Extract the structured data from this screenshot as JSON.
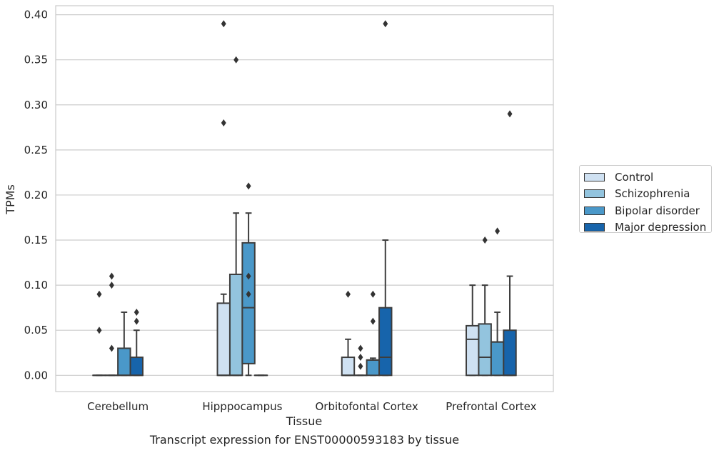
{
  "chart_data": {
    "type": "box",
    "xlabel": "Tissue",
    "ylabel": "TPMs",
    "ylim": [
      -0.018,
      0.41
    ],
    "yticks": [
      0.0,
      0.05,
      0.1,
      0.15,
      0.2,
      0.25,
      0.3,
      0.35,
      0.4
    ],
    "ytick_labels": [
      "0.00",
      "0.05",
      "0.10",
      "0.15",
      "0.20",
      "0.25",
      "0.30",
      "0.35",
      "0.40"
    ],
    "grid": true,
    "legend_position": "right",
    "categories": [
      "Cerebellum",
      "Hipppocampus",
      "Orbitofontal Cortex",
      "Prefrontal Cortex"
    ],
    "series": [
      {
        "name": "Control",
        "color": "#cfe1f2",
        "boxes": [
          {
            "q1": 0,
            "median": 0,
            "q3": 0,
            "whislo": 0,
            "whishi": 0,
            "fliers": [
              0.09,
              0.05
            ]
          },
          {
            "q1": 0,
            "median": 0,
            "q3": 0.08,
            "whislo": 0,
            "whishi": 0.09,
            "fliers": [
              0.39,
              0.28
            ]
          },
          {
            "q1": 0,
            "median": 0,
            "q3": 0.02,
            "whislo": 0,
            "whishi": 0.04,
            "fliers": [
              0.09
            ]
          },
          {
            "q1": 0,
            "median": 0.04,
            "q3": 0.055,
            "whislo": 0,
            "whishi": 0.1,
            "fliers": []
          }
        ]
      },
      {
        "name": "Schizophrenia",
        "color": "#93c4de",
        "boxes": [
          {
            "q1": 0,
            "median": 0,
            "q3": 0,
            "whislo": 0,
            "whishi": 0,
            "fliers": [
              0.11,
              0.1,
              0.03
            ]
          },
          {
            "q1": 0,
            "median": 0,
            "q3": 0.112,
            "whislo": 0,
            "whishi": 0.18,
            "fliers": [
              0.35
            ]
          },
          {
            "q1": 0,
            "median": 0,
            "q3": 0,
            "whislo": 0,
            "whishi": 0,
            "fliers": [
              0.03,
              0.02,
              0.01
            ]
          },
          {
            "q1": 0,
            "median": 0.02,
            "q3": 0.057,
            "whislo": 0,
            "whishi": 0.1,
            "fliers": [
              0.15
            ]
          }
        ]
      },
      {
        "name": "Bipolar disorder",
        "color": "#4a98c9",
        "boxes": [
          {
            "q1": 0,
            "median": 0,
            "q3": 0.03,
            "whislo": 0,
            "whishi": 0.07,
            "fliers": []
          },
          {
            "q1": 0.013,
            "median": 0.075,
            "q3": 0.147,
            "whislo": 0,
            "whishi": 0.18,
            "fliers": [
              0.21,
              0.11,
              0.09
            ]
          },
          {
            "q1": 0,
            "median": 0.017,
            "q3": 0.017,
            "whislo": 0,
            "whishi": 0.019,
            "fliers": [
              0.09,
              0.06
            ]
          },
          {
            "q1": 0,
            "median": 0.037,
            "q3": 0.037,
            "whislo": 0,
            "whishi": 0.07,
            "fliers": [
              0.16
            ]
          }
        ]
      },
      {
        "name": "Major depression",
        "color": "#1764ab",
        "boxes": [
          {
            "q1": 0,
            "median": 0,
            "q3": 0.02,
            "whislo": 0,
            "whishi": 0.05,
            "fliers": [
              0.07,
              0.06
            ]
          },
          {
            "q1": 0,
            "median": 0,
            "q3": 0,
            "whislo": 0,
            "whishi": 0,
            "fliers": []
          },
          {
            "q1": 0,
            "median": 0.02,
            "q3": 0.075,
            "whislo": 0,
            "whishi": 0.15,
            "fliers": [
              0.39
            ]
          },
          {
            "q1": 0,
            "median": 0,
            "q3": 0.05,
            "whislo": 0,
            "whishi": 0.11,
            "fliers": [
              0.29
            ]
          }
        ]
      }
    ],
    "caption": "Transcript expression for ENST00000593183 by tissue"
  }
}
